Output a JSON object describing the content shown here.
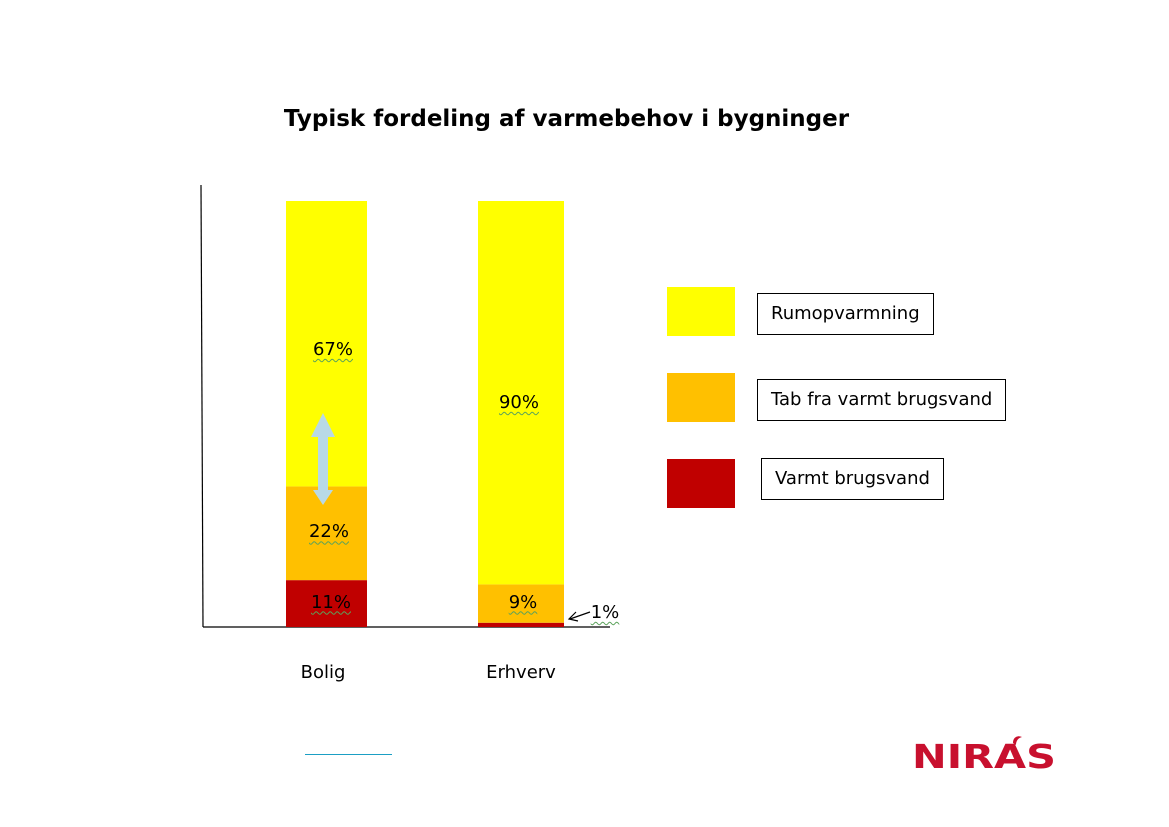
{
  "chart_data": {
    "type": "bar",
    "stacked": true,
    "title": "Typisk fordeling af varmebehov i bygninger",
    "categories": [
      "Bolig",
      "Erhverv"
    ],
    "series": [
      {
        "name": "Varmt brugsvand",
        "values": [
          11,
          1
        ],
        "labels": [
          "11%",
          "1%"
        ],
        "color": "#c00000"
      },
      {
        "name": "Tab fra varmt brugsvand",
        "values": [
          22,
          9
        ],
        "labels": [
          "22%",
          "9%"
        ],
        "color": "#ffc000"
      },
      {
        "name": "Rumopvarmning",
        "values": [
          67,
          90
        ],
        "labels": [
          "67%",
          "90%"
        ],
        "color": "#ffff00"
      }
    ],
    "ylim": [
      0,
      100
    ],
    "xlabel": "",
    "ylabel": "",
    "grid": false,
    "legend_position": "right",
    "annotations": [
      "double-headed arrow between Rumopvarmning and Tab fra varmt brugsvand on Bolig"
    ]
  },
  "legend": {
    "items": [
      {
        "label": "Rumopvarmning",
        "color": "#ffff00"
      },
      {
        "label": "Tab fra varmt brugsvand",
        "color": "#ffc000"
      },
      {
        "label": "Varmt brugsvand",
        "color": "#c00000"
      }
    ]
  },
  "logo": {
    "text": "NIRAS",
    "color": "#c8102e"
  }
}
